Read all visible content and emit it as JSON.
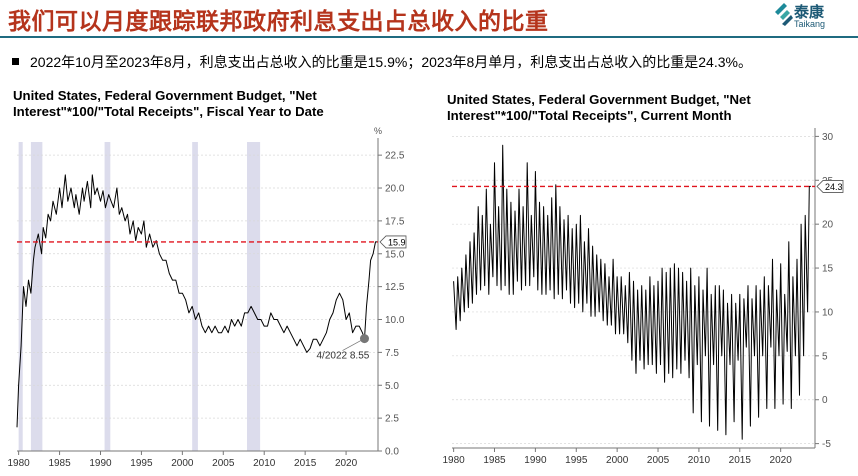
{
  "header": {
    "title": "我们可以月度跟踪联邦政府利息支出占总收入的比重",
    "bullet": "2022年10月至2023年8月，利息支出占总收入的比重是15.9%；2023年8月单月，利息支出占总收入的比重是24.3%。",
    "logo_cn": "泰康",
    "logo_en": "Taikang",
    "accent_color": "#b5341c",
    "brand_color": "#1d5a76"
  },
  "chart_data": [
    {
      "type": "line",
      "title_line1": "United States, Federal Government Budget, \"Net",
      "title_line2": "Interest\"*100/\"Total Receipts\", Fiscal Year to Date",
      "unit_label": "%",
      "x_range": [
        1979.8,
        2023.9
      ],
      "ylim": [
        0,
        23.5
      ],
      "y_ticks": [
        "0.0",
        "2.5",
        "5.0",
        "7.5",
        "10.0",
        "12.5",
        "15.0",
        "17.5",
        "20.0",
        "22.5"
      ],
      "y_tick_values": [
        0,
        2.5,
        5,
        7.5,
        10,
        12.5,
        15,
        17.5,
        20,
        22.5
      ],
      "x_ticks": [
        "1980",
        "1985",
        "1990",
        "1995",
        "2000",
        "2005",
        "2010",
        "2015",
        "2020"
      ],
      "x_tick_values": [
        1980,
        1985,
        1990,
        1995,
        2000,
        2005,
        2010,
        2015,
        2020
      ],
      "recessions": [
        [
          1980.0,
          1980.5
        ],
        [
          1981.5,
          1982.9
        ],
        [
          1990.5,
          1991.2
        ],
        [
          2001.2,
          2001.9
        ],
        [
          2007.9,
          2009.5
        ]
      ],
      "reference_line": 15.9,
      "last_value_label": "15.9",
      "annotation": {
        "text": "4/2022 8.55",
        "x": 2022.25,
        "y": 8.55
      },
      "grid": true,
      "series_color": "#000000",
      "reference_color": "#e0141e",
      "recession_color": "#dcdcec",
      "series": [
        {
          "x": [
            1979.8,
            1980.0,
            1980.3,
            1980.6,
            1980.9,
            1981.2,
            1981.5,
            1981.8,
            1982.0,
            1982.4,
            1982.8,
            1983.0,
            1983.3,
            1983.6,
            1983.9,
            1984.2,
            1984.6,
            1985.0,
            1985.3,
            1985.7,
            1986.0,
            1986.4,
            1986.8,
            1987.0,
            1987.4,
            1987.8,
            1988.0,
            1988.4,
            1988.8,
            1989.0,
            1989.3,
            1989.6,
            1990.0,
            1990.3,
            1990.6,
            1991.0,
            1991.3,
            1991.6,
            1992.0,
            1992.3,
            1992.6,
            1993.0,
            1993.3,
            1993.6,
            1994.0,
            1994.3,
            1994.6,
            1995.0,
            1995.3,
            1995.6,
            1996.0,
            1996.4,
            1996.8,
            1997.2,
            1997.6,
            1998.0,
            1998.4,
            1998.8,
            1999.2,
            1999.6,
            2000.0,
            2000.4,
            2000.8,
            2001.2,
            2001.6,
            2002.0,
            2002.4,
            2002.8,
            2003.2,
            2003.6,
            2004.0,
            2004.4,
            2004.8,
            2005.2,
            2005.6,
            2006.0,
            2006.4,
            2006.8,
            2007.2,
            2007.6,
            2008.0,
            2008.4,
            2008.8,
            2009.2,
            2009.6,
            2010.0,
            2010.4,
            2010.8,
            2011.2,
            2011.6,
            2012.0,
            2012.4,
            2012.8,
            2013.2,
            2013.6,
            2014.0,
            2014.4,
            2014.8,
            2015.2,
            2015.6,
            2016.0,
            2016.4,
            2016.8,
            2017.2,
            2017.6,
            2018.0,
            2018.4,
            2018.8,
            2019.2,
            2019.6,
            2020.0,
            2020.4,
            2020.8,
            2021.2,
            2021.6,
            2022.0,
            2022.25,
            2022.5,
            2022.8,
            2023.0,
            2023.3,
            2023.6,
            2023.8
          ],
          "y": [
            1.8,
            5.0,
            8.0,
            12.5,
            11.0,
            13.0,
            12.0,
            14.5,
            15.5,
            16.5,
            15.0,
            17.0,
            16.2,
            18.0,
            17.5,
            19.0,
            18.0,
            20.0,
            18.5,
            21.0,
            19.0,
            20.0,
            18.5,
            19.5,
            18.0,
            20.0,
            19.0,
            20.5,
            18.5,
            21.0,
            19.5,
            20.0,
            19.0,
            19.8,
            18.5,
            19.5,
            19.0,
            18.5,
            20.0,
            18.0,
            18.5,
            17.5,
            18.0,
            16.5,
            17.5,
            16.0,
            17.0,
            16.5,
            17.5,
            15.5,
            16.5,
            15.5,
            16.0,
            15.0,
            14.5,
            14.5,
            13.5,
            13.0,
            13.0,
            12.0,
            12.0,
            11.5,
            10.5,
            11.0,
            10.0,
            10.5,
            9.5,
            9.0,
            9.5,
            9.0,
            9.5,
            9.0,
            9.0,
            9.5,
            9.0,
            10.0,
            9.5,
            10.0,
            9.5,
            10.5,
            10.5,
            11.0,
            10.5,
            10.0,
            10.0,
            9.5,
            9.5,
            10.5,
            10.0,
            10.0,
            9.5,
            9.0,
            9.5,
            9.0,
            8.5,
            8.0,
            8.5,
            8.0,
            7.5,
            7.8,
            8.5,
            8.5,
            8.0,
            8.5,
            9.0,
            10.0,
            10.5,
            11.5,
            12.0,
            11.5,
            10.0,
            10.5,
            9.0,
            9.5,
            9.5,
            9.0,
            8.55,
            11.0,
            13.0,
            14.5,
            15.0,
            15.9,
            15.9
          ]
        }
      ]
    },
    {
      "type": "line",
      "title_line1": "United States, Federal Government Budget, \"Net",
      "title_line2": "Interest\"*100/\"Total Receipts\", Current Month",
      "x_range": [
        1979.8,
        2024.2
      ],
      "ylim": [
        -5.5,
        30.5
      ],
      "y_ticks": [
        "-5",
        "0",
        "5",
        "10",
        "15",
        "20",
        "25",
        "30"
      ],
      "y_tick_values": [
        -5,
        0,
        5,
        10,
        15,
        20,
        25,
        30
      ],
      "x_ticks": [
        "1980",
        "1985",
        "1990",
        "1995",
        "2000",
        "2005",
        "2010",
        "2015",
        "2020"
      ],
      "x_tick_values": [
        1980,
        1985,
        1990,
        1995,
        2000,
        2005,
        2010,
        2015,
        2020
      ],
      "reference_line": 24.3,
      "last_value_label": "24.3",
      "grid": true,
      "series_color": "#000000",
      "reference_color": "#e0141e",
      "series": [
        {
          "x": [
            1980.0,
            1980.3,
            1980.5,
            1980.8,
            1981.0,
            1981.3,
            1981.5,
            1981.8,
            1982.0,
            1982.3,
            1982.5,
            1982.8,
            1983.0,
            1983.3,
            1983.5,
            1983.8,
            1984.0,
            1984.3,
            1984.5,
            1984.8,
            1985.0,
            1985.3,
            1985.5,
            1985.8,
            1986.0,
            1986.3,
            1986.5,
            1986.8,
            1987.0,
            1987.3,
            1987.5,
            1987.8,
            1988.0,
            1988.3,
            1988.5,
            1988.8,
            1989.0,
            1989.3,
            1989.5,
            1989.8,
            1990.0,
            1990.3,
            1990.5,
            1990.8,
            1991.0,
            1991.3,
            1991.5,
            1991.8,
            1992.0,
            1992.3,
            1992.5,
            1992.8,
            1993.0,
            1993.3,
            1993.5,
            1993.8,
            1994.0,
            1994.3,
            1994.5,
            1994.8,
            1995.0,
            1995.3,
            1995.5,
            1995.8,
            1996.0,
            1996.3,
            1996.5,
            1996.8,
            1997.0,
            1997.3,
            1997.5,
            1997.8,
            1998.0,
            1998.3,
            1998.5,
            1998.8,
            1999.0,
            1999.3,
            1999.5,
            1999.8,
            2000.0,
            2000.3,
            2000.5,
            2000.8,
            2001.0,
            2001.3,
            2001.5,
            2001.8,
            2002.0,
            2002.3,
            2002.5,
            2002.8,
            2003.0,
            2003.3,
            2003.5,
            2003.8,
            2004.0,
            2004.3,
            2004.5,
            2004.8,
            2005.0,
            2005.3,
            2005.5,
            2005.8,
            2006.0,
            2006.3,
            2006.5,
            2006.8,
            2007.0,
            2007.3,
            2007.5,
            2007.8,
            2008.0,
            2008.3,
            2008.5,
            2008.8,
            2009.0,
            2009.3,
            2009.5,
            2009.8,
            2010.0,
            2010.3,
            2010.5,
            2010.8,
            2011.0,
            2011.3,
            2011.5,
            2011.8,
            2012.0,
            2012.3,
            2012.5,
            2012.8,
            2013.0,
            2013.3,
            2013.5,
            2013.8,
            2014.0,
            2014.3,
            2014.5,
            2014.8,
            2015.0,
            2015.3,
            2015.5,
            2015.8,
            2016.0,
            2016.3,
            2016.5,
            2016.8,
            2017.0,
            2017.3,
            2017.5,
            2017.8,
            2018.0,
            2018.3,
            2018.5,
            2018.8,
            2019.0,
            2019.3,
            2019.5,
            2019.8,
            2020.0,
            2020.3,
            2020.5,
            2020.8,
            2021.0,
            2021.3,
            2021.5,
            2021.8,
            2022.0,
            2022.3,
            2022.5,
            2022.8,
            2023.0,
            2023.3,
            2023.5,
            2023.7
          ],
          "y": [
            13.5,
            8.0,
            14.0,
            9.0,
            15.0,
            10.0,
            16.5,
            10.5,
            18.0,
            11.0,
            19.0,
            12.0,
            22.0,
            12.5,
            21.0,
            13.0,
            24.0,
            12.0,
            20.0,
            14.0,
            27.0,
            13.0,
            22.0,
            12.5,
            29.0,
            13.0,
            24.0,
            12.0,
            22.5,
            12.0,
            21.5,
            13.5,
            24.0,
            12.5,
            22.0,
            13.0,
            27.0,
            13.0,
            21.0,
            14.0,
            26.0,
            12.5,
            22.5,
            12.0,
            22.0,
            12.0,
            21.0,
            12.5,
            23.0,
            11.5,
            24.5,
            12.0,
            22.0,
            11.5,
            20.5,
            12.5,
            21.0,
            11.0,
            19.5,
            10.5,
            20.0,
            11.0,
            21.0,
            10.0,
            18.0,
            11.0,
            19.5,
            9.5,
            17.5,
            9.5,
            16.5,
            10.0,
            16.0,
            9.0,
            15.5,
            8.5,
            14.0,
            8.5,
            16.0,
            7.5,
            14.0,
            7.5,
            14.0,
            7.5,
            13.0,
            6.5,
            14.5,
            4.5,
            13.5,
            3.0,
            12.5,
            4.5,
            13.0,
            3.5,
            12.5,
            4.0,
            14.0,
            4.0,
            13.0,
            3.0,
            13.5,
            4.0,
            15.0,
            2.0,
            14.5,
            3.0,
            15.0,
            2.5,
            15.5,
            3.5,
            15.0,
            3.0,
            14.5,
            4.5,
            13.5,
            2.5,
            15.0,
            -1.5,
            13.0,
            4.0,
            14.0,
            -2.5,
            12.5,
            5.0,
            15.0,
            -3.0,
            12.0,
            4.0,
            13.0,
            -3.5,
            13.0,
            5.0,
            12.5,
            -4.0,
            11.0,
            4.0,
            12.0,
            -2.5,
            11.0,
            4.5,
            12.0,
            -4.5,
            11.5,
            6.0,
            13.0,
            -3.0,
            11.5,
            5.0,
            13.0,
            -2.0,
            12.5,
            5.0,
            14.0,
            -1.0,
            13.0,
            6.0,
            16.0,
            -1.0,
            12.5,
            5.0,
            15.5,
            -0.5,
            12.0,
            5.5,
            18.0,
            -1.0,
            14.0,
            5.0,
            16.0,
            0.5,
            20.0,
            5.0,
            21.0,
            10.0,
            24.3,
            24.3
          ]
        }
      ]
    }
  ]
}
